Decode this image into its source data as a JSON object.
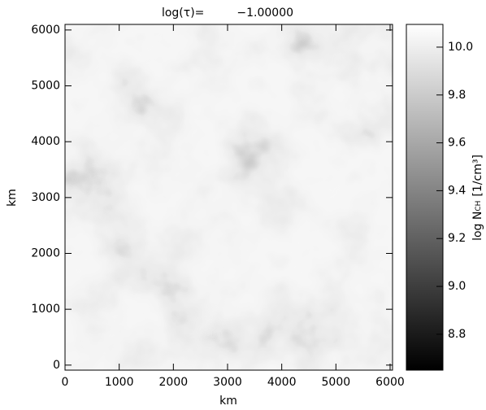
{
  "chart_data": {
    "type": "heatmap",
    "title_prefix": "log(τ)=",
    "title_value": "−1.00000",
    "xlabel": "km",
    "ylabel": "km",
    "colorbar_label": {
      "main": "log N",
      "sub": "CH",
      "unit": "[1/cm³]"
    },
    "colormap": "gray",
    "xlim": [
      0,
      6045
    ],
    "xticks": [
      0,
      1000,
      2000,
      3000,
      4000,
      5000,
      6000
    ],
    "ylim": [
      -90,
      6100
    ],
    "yticks": [
      0,
      1000,
      2000,
      3000,
      4000,
      5000,
      6000
    ],
    "clim": [
      8.65,
      10.095
    ],
    "cticks": [
      {
        "value": 8.8,
        "label": "8.8"
      },
      {
        "value": 9.0,
        "label": "9.0"
      },
      {
        "value": 9.2,
        "label": "9.2"
      },
      {
        "value": 9.4,
        "label": "9.4"
      },
      {
        "value": 9.6,
        "label": "9.6"
      },
      {
        "value": 9.8,
        "label": "9.8"
      },
      {
        "value": 10.0,
        "label": "10.0"
      }
    ]
  }
}
